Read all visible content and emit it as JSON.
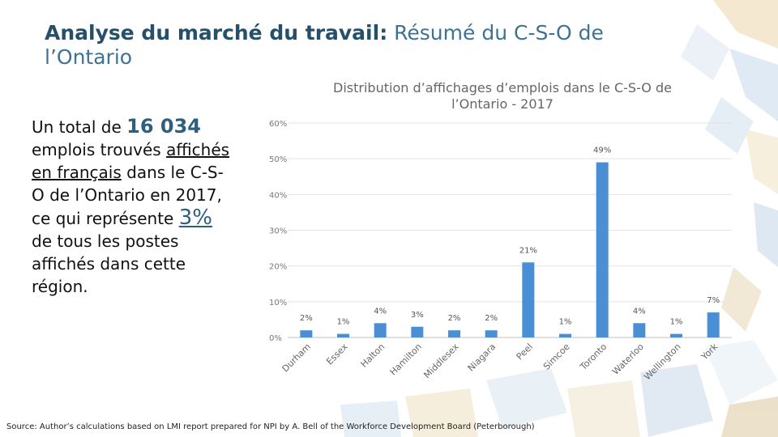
{
  "slide": {
    "title_bold": "Analyse du marché du travail:",
    "title_rest": " Résumé du C-S-O de l’Ontario",
    "summary": {
      "line1": "Un total de ",
      "total": "16 034",
      "line2": " emplois trouvés ",
      "line3": "affichés en français",
      "line4": " dans le C-S-O de l’Ontario en 2017, ce qui représente ",
      "pct": "3%",
      "line5": " de tous les postes affichés dans cette région."
    },
    "source": "Source: Author’s calculations based on LMI report prepared for NPI by A. Bell of the Workforce Development Board (Peterborough)"
  },
  "chart_data": {
    "type": "bar",
    "title": "Distribution d’affichages d’emplois dans le C-S-O de l’Ontario - 2017",
    "categories": [
      "Durham",
      "Essex",
      "Halton",
      "Hamilton",
      "Middlesex",
      "Niagara",
      "Peel",
      "Simcoe",
      "Toronto",
      "Waterloo",
      "Wellington",
      "York"
    ],
    "values": [
      2,
      1,
      4,
      3,
      2,
      2,
      21,
      1,
      49,
      4,
      1,
      7
    ],
    "data_labels": [
      "2%",
      "1%",
      "4%",
      "3%",
      "2%",
      "2%",
      "21%",
      "1%",
      "49%",
      "4%",
      "1%",
      "7%"
    ],
    "ylim": [
      0,
      60
    ],
    "yticks": [
      "0%",
      "10%",
      "20%",
      "30%",
      "40%",
      "50%",
      "60%"
    ],
    "grid": true,
    "bar_color": "#4a8fd4"
  }
}
